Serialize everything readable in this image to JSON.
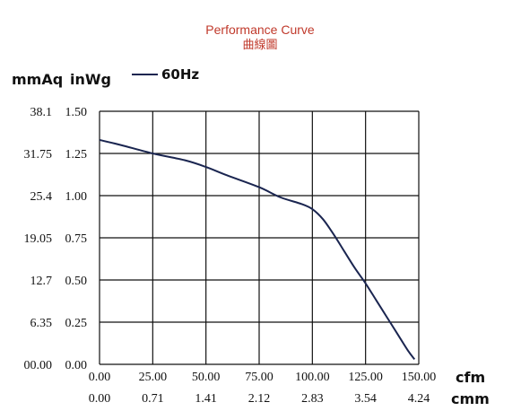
{
  "chart_data": {
    "type": "line",
    "title": "Performance Curve",
    "subtitle": "曲線圖",
    "y_units": {
      "left": "mmAq",
      "right": "inWg"
    },
    "x_units": {
      "primary": "cfm",
      "secondary": "cmm"
    },
    "legend": {
      "label": "60Hz",
      "placement": "top-left"
    },
    "x_ticks_cfm": [
      "0.00",
      "25.00",
      "50.00",
      "75.00",
      "100.00",
      "125.00",
      "150.00"
    ],
    "x_ticks_cmm": [
      "0.00",
      "0.71",
      "1.41",
      "2.12",
      "2.83",
      "3.54",
      "4.24"
    ],
    "y_ticks_inwg": [
      "0.00",
      "0.25",
      "0.50",
      "0.75",
      "1.00",
      "1.25",
      "1.50"
    ],
    "y_ticks_mmaq": [
      "00.00",
      "6.35",
      "12.7",
      "19.05",
      "25.4",
      "31.75",
      "38.1"
    ],
    "xlim": [
      0,
      150
    ],
    "ylim": [
      0,
      1.5
    ],
    "grid": true,
    "series": [
      {
        "name": "60Hz",
        "color": "#1a2550",
        "x": [
          0,
          10,
          25,
          40,
          50,
          60,
          75,
          85,
          95,
          100,
          105,
          110,
          115,
          120,
          125,
          130,
          135,
          140,
          145,
          148
        ],
        "values": [
          1.33,
          1.3,
          1.25,
          1.21,
          1.17,
          1.12,
          1.05,
          0.99,
          0.95,
          0.92,
          0.86,
          0.77,
          0.67,
          0.57,
          0.48,
          0.38,
          0.28,
          0.18,
          0.08,
          0.03
        ]
      }
    ]
  }
}
